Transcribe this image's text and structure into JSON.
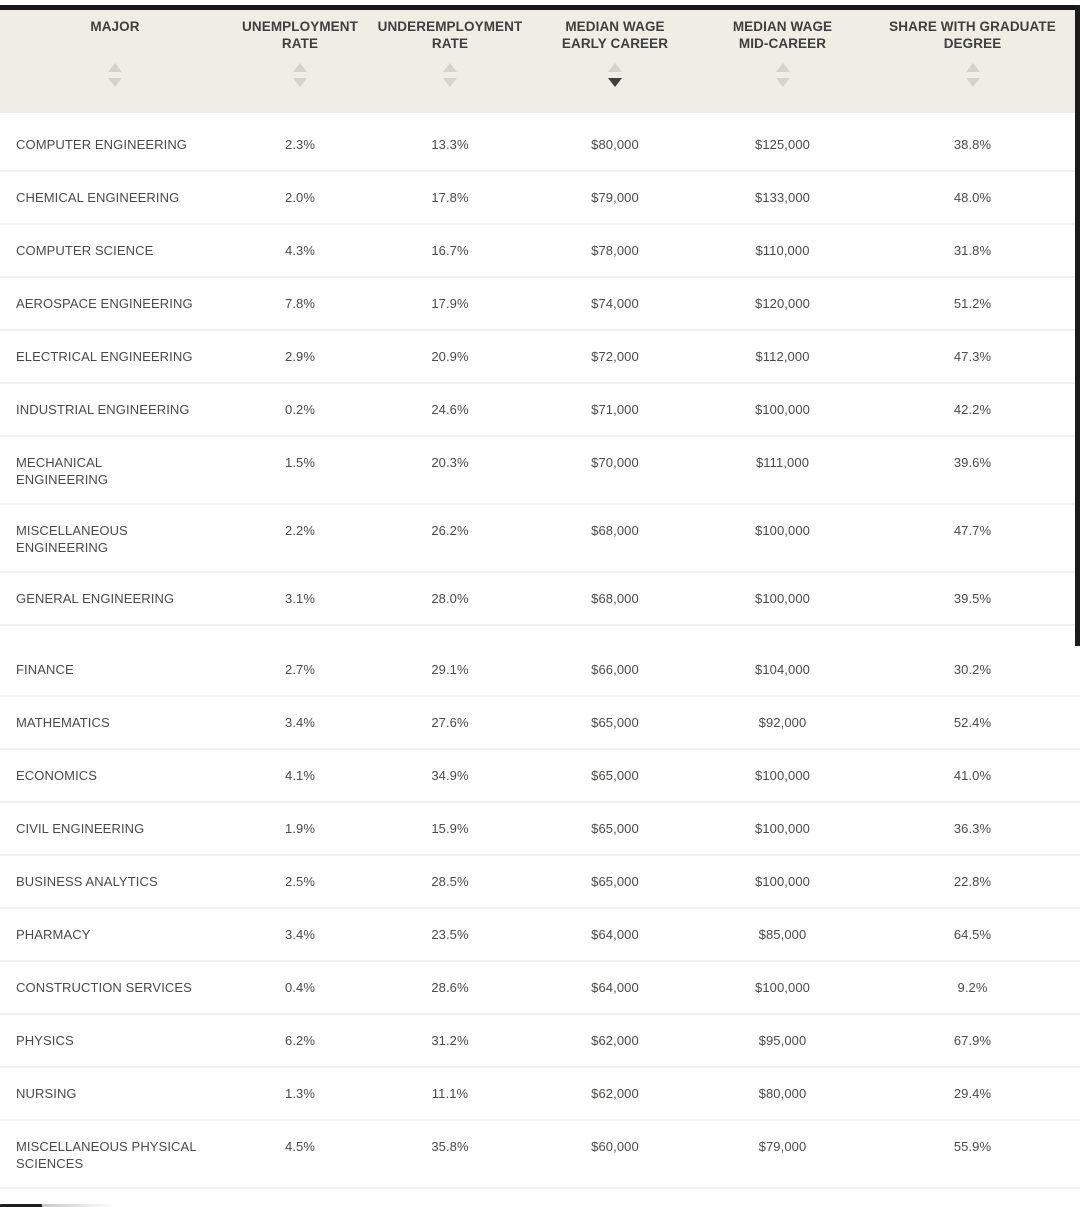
{
  "colors": {
    "header_bg": "#EFEDE4",
    "header_text": "#3F3F3B",
    "row_text": "#4A4A48",
    "divider": "#F1F1EF",
    "arrow_inactive": "#D5D3CA",
    "arrow_active": "#3F3F3B",
    "edge_bar": "#181818"
  },
  "table": {
    "columns": [
      {
        "id": "major",
        "line1": "MAJOR",
        "line2": "",
        "sort": "none"
      },
      {
        "id": "unemployment",
        "line1": "UNEMPLOYMENT",
        "line2": "RATE",
        "sort": "none"
      },
      {
        "id": "underemployment",
        "line1": "UNDEREMPLOYMENT",
        "line2": "RATE",
        "sort": "none"
      },
      {
        "id": "wage_early",
        "line1": "MEDIAN WAGE",
        "line2": "EARLY CAREER",
        "sort": "desc"
      },
      {
        "id": "wage_mid",
        "line1": "MEDIAN WAGE",
        "line2": "MID-CAREER",
        "sort": "none"
      },
      {
        "id": "grad_share",
        "line1": "SHARE WITH GRADUATE",
        "line2": "DEGREE",
        "sort": "none"
      }
    ],
    "rows": [
      {
        "major": "COMPUTER ENGINEERING",
        "unemployment": "2.3%",
        "underemployment": "13.3%",
        "wage_early": "$80,000",
        "wage_mid": "$125,000",
        "grad_share": "38.8%"
      },
      {
        "major": "CHEMICAL ENGINEERING",
        "unemployment": "2.0%",
        "underemployment": "17.8%",
        "wage_early": "$79,000",
        "wage_mid": "$133,000",
        "grad_share": "48.0%"
      },
      {
        "major": "COMPUTER SCIENCE",
        "unemployment": "4.3%",
        "underemployment": "16.7%",
        "wage_early": "$78,000",
        "wage_mid": "$110,000",
        "grad_share": "31.8%"
      },
      {
        "major": "AEROSPACE ENGINEERING",
        "unemployment": "7.8%",
        "underemployment": "17.9%",
        "wage_early": "$74,000",
        "wage_mid": "$120,000",
        "grad_share": "51.2%"
      },
      {
        "major": "ELECTRICAL ENGINEERING",
        "unemployment": "2.9%",
        "underemployment": "20.9%",
        "wage_early": "$72,000",
        "wage_mid": "$112,000",
        "grad_share": "47.3%"
      },
      {
        "major": "INDUSTRIAL ENGINEERING",
        "unemployment": "0.2%",
        "underemployment": "24.6%",
        "wage_early": "$71,000",
        "wage_mid": "$100,000",
        "grad_share": "42.2%"
      },
      {
        "major": "MECHANICAL\nENGINEERING",
        "unemployment": "1.5%",
        "underemployment": "20.3%",
        "wage_early": "$70,000",
        "wage_mid": "$111,000",
        "grad_share": "39.6%"
      },
      {
        "major": "MISCELLANEOUS\nENGINEERING",
        "unemployment": "2.2%",
        "underemployment": "26.2%",
        "wage_early": "$68,000",
        "wage_mid": "$100,000",
        "grad_share": "47.7%"
      },
      {
        "major": "GENERAL ENGINEERING",
        "unemployment": "3.1%",
        "underemployment": "28.0%",
        "wage_early": "$68,000",
        "wage_mid": "$100,000",
        "grad_share": "39.5%"
      },
      {
        "major": "FINANCE",
        "unemployment": "2.7%",
        "underemployment": "29.1%",
        "wage_early": "$66,000",
        "wage_mid": "$104,000",
        "grad_share": "30.2%",
        "spacer_before": true
      },
      {
        "major": "MATHEMATICS",
        "unemployment": "3.4%",
        "underemployment": "27.6%",
        "wage_early": "$65,000",
        "wage_mid": "$92,000",
        "grad_share": "52.4%"
      },
      {
        "major": "ECONOMICS",
        "unemployment": "4.1%",
        "underemployment": "34.9%",
        "wage_early": "$65,000",
        "wage_mid": "$100,000",
        "grad_share": "41.0%"
      },
      {
        "major": "CIVIL ENGINEERING",
        "unemployment": "1.9%",
        "underemployment": "15.9%",
        "wage_early": "$65,000",
        "wage_mid": "$100,000",
        "grad_share": "36.3%"
      },
      {
        "major": "BUSINESS ANALYTICS",
        "unemployment": "2.5%",
        "underemployment": "28.5%",
        "wage_early": "$65,000",
        "wage_mid": "$100,000",
        "grad_share": "22.8%"
      },
      {
        "major": "PHARMACY",
        "unemployment": "3.4%",
        "underemployment": "23.5%",
        "wage_early": "$64,000",
        "wage_mid": "$85,000",
        "grad_share": "64.5%"
      },
      {
        "major": "CONSTRUCTION SERVICES",
        "unemployment": "0.4%",
        "underemployment": "28.6%",
        "wage_early": "$64,000",
        "wage_mid": "$100,000",
        "grad_share": "9.2%"
      },
      {
        "major": "PHYSICS",
        "unemployment": "6.2%",
        "underemployment": "31.2%",
        "wage_early": "$62,000",
        "wage_mid": "$95,000",
        "grad_share": "67.9%"
      },
      {
        "major": "NURSING",
        "unemployment": "1.3%",
        "underemployment": "11.1%",
        "wage_early": "$62,000",
        "wage_mid": "$80,000",
        "grad_share": "29.4%"
      },
      {
        "major": "MISCELLANEOUS PHYSICAL\nSCIENCES",
        "unemployment": "4.5%",
        "underemployment": "35.8%",
        "wage_early": "$60,000",
        "wage_mid": "$79,000",
        "grad_share": "55.9%"
      }
    ]
  }
}
